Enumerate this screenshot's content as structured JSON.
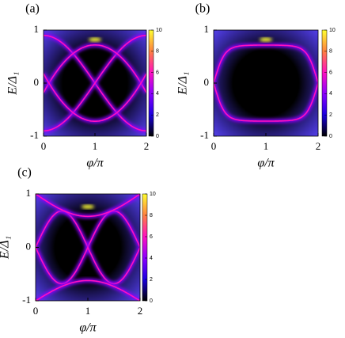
{
  "chart_data": [
    {
      "type": "heatmap",
      "panel_label": "(a)",
      "x_label": "φ/π",
      "y_label": "E/Δ₁",
      "xlim": [
        0,
        2
      ],
      "xticks": [
        0,
        1,
        2
      ],
      "ylim": [
        -1,
        1
      ],
      "yticks": [
        -1,
        0,
        1
      ],
      "clim": [
        0,
        10
      ],
      "cticks": [
        0,
        2,
        4,
        6,
        8,
        10
      ],
      "colormap": [
        "#000000",
        "#1a00e0",
        "#8a00ff",
        "#ff10c0",
        "#ff8040",
        "#ffff30"
      ]
    },
    {
      "type": "heatmap",
      "panel_label": "(b)",
      "x_label": "φ/π",
      "y_label": "E/Δ₁",
      "xlim": [
        0,
        2
      ],
      "xticks": [
        0,
        1,
        2
      ],
      "ylim": [
        -1,
        1
      ],
      "yticks": [
        -1,
        0,
        1
      ],
      "clim": [
        0,
        10
      ],
      "cticks": [
        0,
        2,
        4,
        6,
        8,
        10
      ],
      "colormap": [
        "#000000",
        "#1a00e0",
        "#8a00ff",
        "#ff10c0",
        "#ff8040",
        "#ffff30"
      ]
    },
    {
      "type": "heatmap",
      "panel_label": "(c)",
      "x_label": "φ/π",
      "y_label": "E/Δ₁",
      "xlim": [
        0,
        2
      ],
      "xticks": [
        0,
        1,
        2
      ],
      "ylim": [
        -1,
        1
      ],
      "yticks": [
        -1,
        0,
        1
      ],
      "clim": [
        0,
        10
      ],
      "cticks": [
        0,
        2,
        4,
        6,
        8,
        10
      ],
      "colormap": [
        "#000000",
        "#1a00e0",
        "#8a00ff",
        "#ff10c0",
        "#ff8040",
        "#ffff30"
      ]
    }
  ]
}
